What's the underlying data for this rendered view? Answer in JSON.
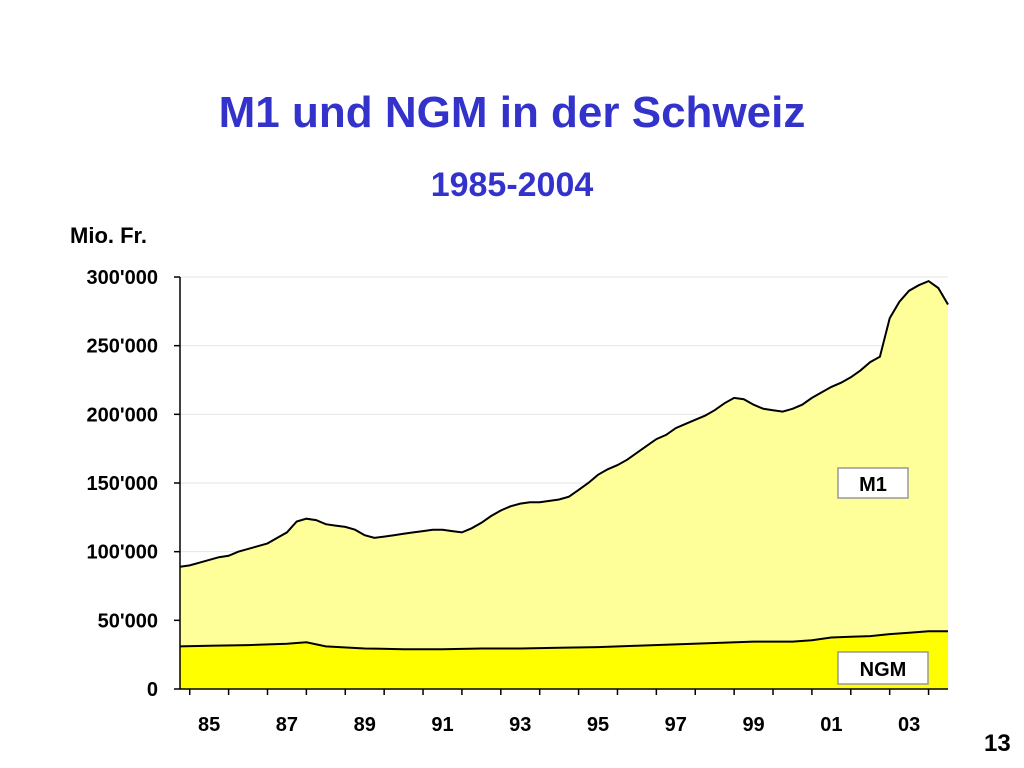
{
  "slide": {
    "page_number": "13"
  },
  "chart_data": {
    "type": "area",
    "stacked": false,
    "title": "M1 und NGM in der Schweiz",
    "subtitle": "1985-2004",
    "ylabel": "Mio. Fr.",
    "xlabel": "",
    "ylim": [
      0,
      300000
    ],
    "xlim": [
      1984.75,
      2004.5
    ],
    "y_ticks": [
      0,
      50000,
      100000,
      150000,
      200000,
      250000,
      300000
    ],
    "y_tick_labels": [
      "0",
      "50'000",
      "100'000",
      "150'000",
      "200'000",
      "250'000",
      "300'000"
    ],
    "x_ticks": [
      1985.5,
      1987.5,
      1989.5,
      1991.5,
      1993.5,
      1995.5,
      1997.5,
      1999.5,
      2001.5,
      2003.5
    ],
    "x_tick_labels": [
      "85",
      "87",
      "89",
      "91",
      "93",
      "95",
      "97",
      "99",
      "01",
      "03"
    ],
    "grid": true,
    "colors": {
      "m1_fill": "#ffff99",
      "ngm_fill": "#ffff00",
      "title": "#3333cc",
      "grid": "#e6e6e6"
    },
    "series": [
      {
        "name": "M1",
        "x": [
          1984.75,
          1985,
          1985.25,
          1985.5,
          1985.75,
          1986,
          1986.25,
          1986.5,
          1986.75,
          1987,
          1987.25,
          1987.5,
          1987.75,
          1988,
          1988.25,
          1988.5,
          1988.75,
          1989,
          1989.25,
          1989.5,
          1989.75,
          1990,
          1990.25,
          1990.5,
          1990.75,
          1991,
          1991.25,
          1991.5,
          1991.75,
          1992,
          1992.25,
          1992.5,
          1992.75,
          1993,
          1993.25,
          1993.5,
          1993.75,
          1994,
          1994.25,
          1994.5,
          1994.75,
          1995,
          1995.25,
          1995.5,
          1995.75,
          1996,
          1996.25,
          1996.5,
          1996.75,
          1997,
          1997.25,
          1997.5,
          1997.75,
          1998,
          1998.25,
          1998.5,
          1998.75,
          1999,
          1999.25,
          1999.5,
          1999.75,
          2000,
          2000.25,
          2000.5,
          2000.75,
          2001,
          2001.25,
          2001.5,
          2001.75,
          2002,
          2002.25,
          2002.5,
          2002.75,
          2003,
          2003.25,
          2003.5,
          2003.75,
          2004,
          2004.25,
          2004.5
        ],
        "values": [
          89000,
          90000,
          92000,
          94000,
          96000,
          97000,
          100000,
          102000,
          104000,
          106000,
          110000,
          114000,
          122000,
          124000,
          123000,
          120000,
          119000,
          118000,
          116000,
          112000,
          110000,
          111000,
          112000,
          113000,
          114000,
          115000,
          116000,
          116000,
          115000,
          114000,
          117000,
          121000,
          126000,
          130000,
          133000,
          135000,
          136000,
          136000,
          137000,
          138000,
          140000,
          145000,
          150000,
          156000,
          160000,
          163000,
          167000,
          172000,
          177000,
          182000,
          185000,
          190000,
          193000,
          196000,
          199000,
          203000,
          208000,
          212000,
          211000,
          207000,
          204000,
          203000,
          202000,
          204000,
          207000,
          212000,
          216000,
          220000,
          223000,
          227000,
          232000,
          238000,
          242000,
          270000,
          282000,
          290000,
          294000,
          297000,
          292000,
          280000
        ]
      },
      {
        "name": "NGM",
        "x": [
          1984.75,
          1985.5,
          1986.5,
          1987.5,
          1988,
          1988.5,
          1989.5,
          1990.5,
          1991.5,
          1992.5,
          1993.5,
          1994.5,
          1995.5,
          1996.5,
          1997.5,
          1998.5,
          1999.5,
          2000.5,
          2001,
          2001.5,
          2002,
          2002.5,
          2003,
          2003.5,
          2004,
          2004.5
        ],
        "values": [
          31000,
          31500,
          32000,
          33000,
          34000,
          31000,
          29500,
          29000,
          29000,
          29500,
          29500,
          30000,
          30500,
          31500,
          32500,
          33500,
          34500,
          34500,
          35500,
          37500,
          38000,
          38500,
          40000,
          41000,
          42000,
          42000
        ]
      }
    ],
    "labels": [
      "M1",
      "NGM"
    ]
  }
}
